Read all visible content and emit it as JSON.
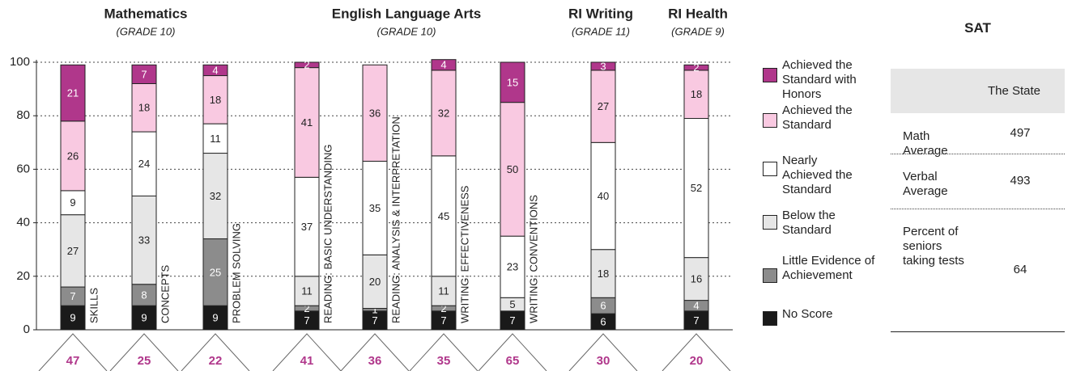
{
  "chart_data": {
    "type": "bar",
    "stacked": true,
    "groups": [
      {
        "title": "Mathematics",
        "grade": "(GRADE 10)"
      },
      {
        "title": "English Language Arts",
        "grade": "(GRADE 10)"
      },
      {
        "title": "RI Writing",
        "grade": "(GRADE 11)"
      },
      {
        "title": "RI Health",
        "grade": "(GRADE 9)"
      }
    ],
    "categories": [
      "SKILLS",
      "CONCEPTS",
      "PROBLEM SOLVING",
      "READING: BASIC UNDERSTANDING",
      "READING: ANALYSIS & INTERPRETATION",
      "WRITING: EFFECTIVENESS",
      "WRITING: CONVENTIONS",
      null,
      null
    ],
    "counts": [
      47,
      25,
      22,
      41,
      36,
      35,
      65,
      30,
      20
    ],
    "series": [
      {
        "name": "No Score",
        "color": "#1a1a1a",
        "values": [
          9,
          9,
          9,
          7,
          7,
          7,
          7,
          6,
          7
        ]
      },
      {
        "name": "Little Evidence of Achievement",
        "color": "#8c8c8c",
        "values": [
          7,
          8,
          25,
          2,
          1,
          2,
          null,
          6,
          4
        ]
      },
      {
        "name": "Below the Standard",
        "color": "#e6e6e6",
        "values": [
          27,
          33,
          32,
          11,
          20,
          11,
          5,
          18,
          16
        ]
      },
      {
        "name": "Nearly Achieved the Standard",
        "color": "#ffffff",
        "values": [
          9,
          24,
          11,
          37,
          35,
          45,
          23,
          40,
          52
        ]
      },
      {
        "name": "Achieved the Standard",
        "color": "#f9c9e1",
        "values": [
          26,
          18,
          18,
          41,
          36,
          32,
          50,
          27,
          18
        ]
      },
      {
        "name": "Achieved the Standard with Honors",
        "color": "#b0378b",
        "values": [
          21,
          7,
          4,
          2,
          null,
          4,
          15,
          3,
          2
        ]
      }
    ],
    "ylim": [
      0,
      100
    ],
    "yticks": [
      0,
      20,
      40,
      60,
      80,
      100
    ],
    "grid": true,
    "count_color": "#b0378b"
  },
  "table": {
    "title": "SAT",
    "column": "The State",
    "rows": [
      [
        "Math Average",
        "497"
      ],
      [
        "Verbal Average",
        "493"
      ],
      [
        "Percent of seniors taking tests",
        "64"
      ]
    ]
  }
}
